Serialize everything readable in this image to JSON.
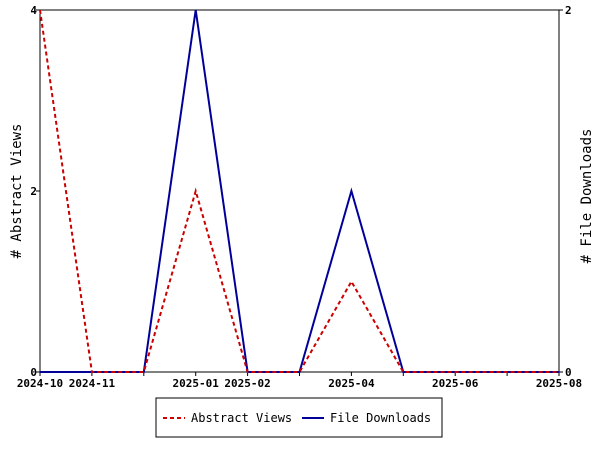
{
  "chart_data": {
    "type": "line",
    "x": [
      "2024-10",
      "2024-11",
      "2024-12",
      "2025-01",
      "2025-02",
      "2025-03",
      "2025-04",
      "2025-05",
      "2025-06",
      "2025-07",
      "2025-08"
    ],
    "x_tick_labels": [
      "2024-10",
      "2024-11",
      "2025-01",
      "2025-02",
      "2025-04",
      "2025-06",
      "2025-08"
    ],
    "series": [
      {
        "name": "Abstract Views",
        "axis": "left",
        "color": "#cc0000",
        "dash": "dashed",
        "values": [
          4,
          0,
          0,
          2,
          0,
          0,
          1,
          0,
          0,
          0,
          0
        ]
      },
      {
        "name": "File Downloads",
        "axis": "right",
        "color": "#000099",
        "dash": "solid",
        "values": [
          0,
          0,
          0,
          2,
          0,
          0,
          1,
          0,
          0,
          0,
          0
        ]
      }
    ],
    "ylabel": "# Abstract Views",
    "ylabel_right": "# File Downloads",
    "ylim": [
      0,
      4
    ],
    "ylim_right": [
      0,
      2
    ],
    "yticks": [
      "0",
      "2",
      "4"
    ],
    "yticks_right": [
      "0",
      "2"
    ],
    "legend_position": "bottom",
    "grid": false
  }
}
